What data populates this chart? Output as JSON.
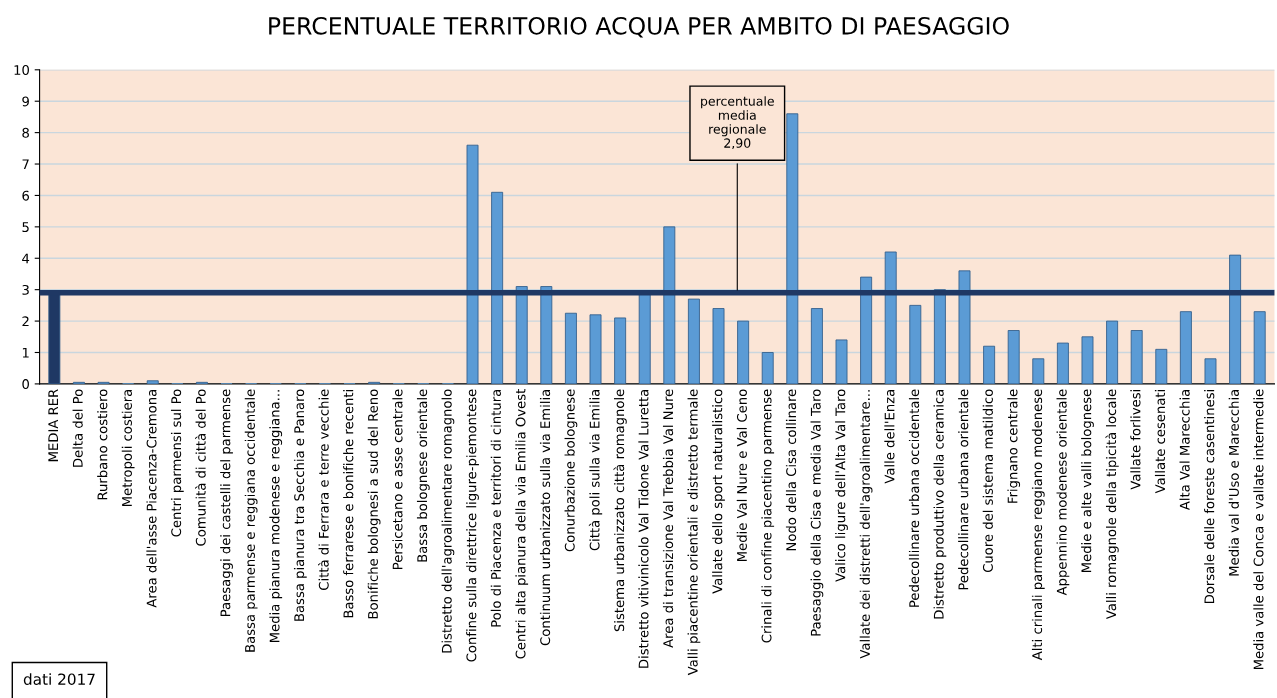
{
  "chart_data": {
    "type": "bar",
    "title": "PERCENTUALE TERRITORIO ACQUA PER AMBITO DI PAESAGGIO",
    "categories": [
      "MEDIA RER",
      "Delta del Po",
      "Rurbano costiero",
      "Metropoli costiera",
      "Area dell'asse Piacenza-Cremona",
      "Centri parmensi sul Po",
      "Comunità di città del Po",
      "Paesaggi dei castelli del parmense",
      "Bassa parmense e reggiana occidentale",
      "Media pianura modenese e reggiana...",
      "Bassa pianura tra Secchia e Panaro",
      "Città di Ferrara e terre vecchie",
      "Basso ferrarese e bonifiche recenti",
      "Bonifiche bolognesi a sud del Reno",
      "Persicetano e asse centrale",
      "Bassa bolognese orientale",
      "Distretto dell'agroalimentare romagnolo",
      "Confine sulla direttrice ligure-piemontese",
      "Polo di Piacenza e territori di cintura",
      "Centri alta pianura della via Emilia Ovest",
      "Continuum urbanizzato sulla via Emilia",
      "Conurbazione bolognese",
      "Città poli sulla via Emilia",
      "Sistema urbanizzato città romagnole",
      "Distretto vitivinicolo Val Tidone Val Luretta",
      "Area di transizione Val Trebbia Val Nure",
      "Valli piacentine orientali e distretto termale",
      "Vallate dello sport naturalistico",
      "Medie Val Nure e Val Ceno",
      "Crinali di confine piacentino parmense",
      "Nodo della Cisa collinare",
      "Paesaggio della Cisa e media Val Taro",
      "Valico ligure dell'Alta Val Taro",
      "Vallate dei distretti dell'agroalimentare...",
      "Valle dell'Enza",
      "Pedecollinare urbana occidentale",
      "Distretto produttivo della ceramica",
      "Pedecollinare urbana orientale",
      "Cuore del sistema matildico",
      "Frignano centrale",
      "Alti crinali parmense reggiano modenese",
      "Appennino modenese orientale",
      "Medie e alte valli bolognese",
      "Valli romagnole della tipicità locale",
      "Vallate forlivesi",
      "Vallate cesenati",
      "Alta Val Marecchia",
      "Dorsale delle foreste casentinesi",
      "Media val d'Uso e Marecchia",
      "Media valle del Conca e vallate intermedie"
    ],
    "values": [
      2.9,
      0.05,
      0.05,
      0,
      0.1,
      0,
      0.05,
      0,
      0,
      0,
      0,
      0,
      0,
      0.05,
      0,
      0,
      0,
      7.6,
      6.1,
      3.1,
      3.1,
      2.25,
      2.2,
      2.1,
      2.9,
      5.0,
      2.7,
      2.4,
      2.0,
      1.0,
      8.6,
      2.4,
      1.4,
      3.4,
      4.2,
      2.5,
      3.0,
      3.6,
      1.2,
      1.7,
      0.8,
      1.3,
      1.5,
      2.0,
      1.7,
      1.1,
      2.3,
      0.8,
      4.1,
      2.3
    ],
    "colors": [
      "#1f3864",
      "#5b9bd5",
      "#5b9bd5",
      "#5b9bd5",
      "#5b9bd5",
      "#5b9bd5",
      "#5b9bd5",
      "#5b9bd5",
      "#5b9bd5",
      "#5b9bd5",
      "#5b9bd5",
      "#5b9bd5",
      "#5b9bd5",
      "#5b9bd5",
      "#5b9bd5",
      "#5b9bd5",
      "#5b9bd5",
      "#5b9bd5",
      "#5b9bd5",
      "#5b9bd5",
      "#5b9bd5",
      "#5b9bd5",
      "#5b9bd5",
      "#5b9bd5",
      "#5b9bd5",
      "#5b9bd5",
      "#5b9bd5",
      "#5b9bd5",
      "#5b9bd5",
      "#5b9bd5",
      "#5b9bd5",
      "#5b9bd5",
      "#5b9bd5",
      "#5b9bd5",
      "#5b9bd5",
      "#5b9bd5",
      "#5b9bd5",
      "#5b9bd5",
      "#5b9bd5",
      "#5b9bd5",
      "#5b9bd5",
      "#5b9bd5",
      "#5b9bd5",
      "#5b9bd5",
      "#5b9bd5",
      "#5b9bd5",
      "#5b9bd5",
      "#5b9bd5",
      "#5b9bd5",
      "#5b9bd5"
    ],
    "ylim": [
      0,
      10
    ],
    "yticks": [
      0,
      1,
      2,
      3,
      4,
      5,
      6,
      7,
      8,
      9,
      10
    ],
    "grid": "y",
    "ref_lines": [
      {
        "axis": "y",
        "value": 2.9,
        "label": "percentuale\nmedia\nregionale\n2,90",
        "color": "#1f3864"
      }
    ],
    "annotations": [
      "dati 2017"
    ]
  }
}
